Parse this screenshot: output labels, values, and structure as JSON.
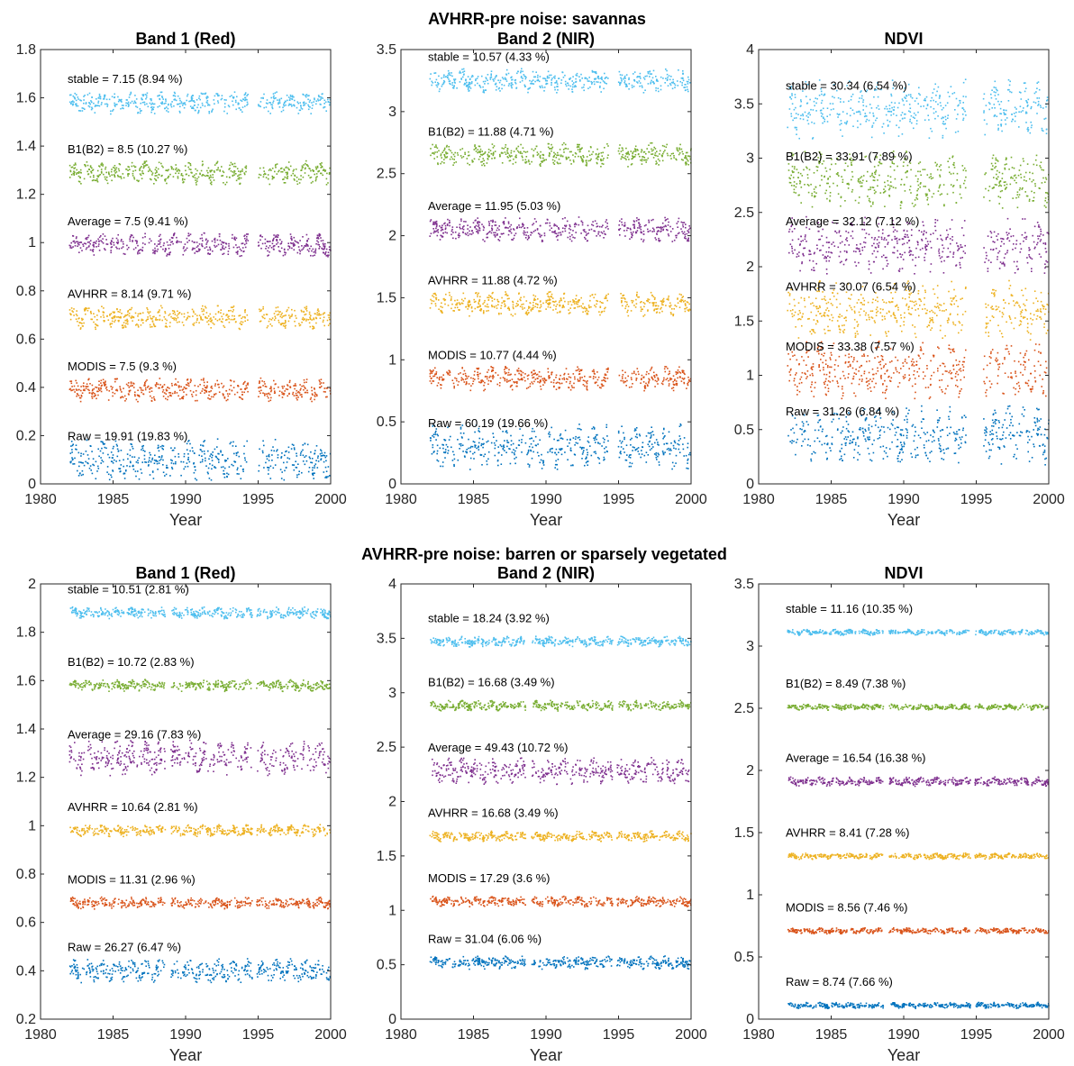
{
  "figure": {
    "sections": [
      {
        "title": "AVHRR-pre noise: savannas"
      },
      {
        "title": "AVHRR-pre noise: barren or sparsely vegetated"
      }
    ],
    "series_order": [
      "stable",
      "B1(B2)",
      "Average",
      "AVHRR",
      "MODIS",
      "Raw"
    ],
    "colors": {
      "stable": "#4DBEEE",
      "B1(B2)": "#77AC30",
      "Average": "#7E2F8E",
      "AVHRR": "#EDB120",
      "MODIS": "#D95319",
      "Raw": "#0072BD"
    }
  },
  "chart_data": [
    {
      "type": "scatter",
      "section": 0,
      "title": "Band 1 (Red)",
      "xlabel": "Year",
      "ylabel": "",
      "xlim": [
        1980,
        2000
      ],
      "xticks": [
        1980,
        1985,
        1990,
        1995,
        2000
      ],
      "ylim": [
        0,
        1.8
      ],
      "yticks": [
        0,
        0.2,
        0.4,
        0.6,
        0.8,
        1,
        1.2,
        1.4,
        1.6,
        1.8
      ],
      "x_range": [
        1982,
        2000
      ],
      "gaps": [
        [
          1994.3,
          1995.0
        ]
      ],
      "series": [
        {
          "name": "stable",
          "label": "stable = 7.15 (8.94 %)",
          "baseline": 1.58,
          "spread": 0.04
        },
        {
          "name": "B1(B2)",
          "label": "B1(B2) = 8.5 (10.27 %)",
          "baseline": 1.29,
          "spread": 0.04
        },
        {
          "name": "Average",
          "label": "Average = 7.5 (9.41 %)",
          "baseline": 0.99,
          "spread": 0.04
        },
        {
          "name": "AVHRR",
          "label": "AVHRR = 8.14 (9.71 %)",
          "baseline": 0.69,
          "spread": 0.04
        },
        {
          "name": "MODIS",
          "label": "MODIS = 7.5 (9.3 %)",
          "baseline": 0.39,
          "spread": 0.04
        },
        {
          "name": "Raw",
          "label": "Raw = 19.91 (19.83 %)",
          "baseline": 0.1,
          "spread": 0.07
        }
      ]
    },
    {
      "type": "scatter",
      "section": 0,
      "title": "Band 2 (NIR)",
      "xlabel": "Year",
      "ylabel": "",
      "xlim": [
        1980,
        2000
      ],
      "xticks": [
        1980,
        1985,
        1990,
        1995,
        2000
      ],
      "ylim": [
        0,
        3.5
      ],
      "yticks": [
        0,
        0.5,
        1,
        1.5,
        2,
        2.5,
        3,
        3.5
      ],
      "x_range": [
        1982,
        2000
      ],
      "gaps": [
        [
          1994.3,
          1995.0
        ]
      ],
      "series": [
        {
          "name": "stable",
          "label": "stable = 10.57 (4.33 %)",
          "baseline": 3.25,
          "spread": 0.08
        },
        {
          "name": "B1(B2)",
          "label": "B1(B2) = 11.88 (4.71 %)",
          "baseline": 2.65,
          "spread": 0.08
        },
        {
          "name": "Average",
          "label": "Average = 11.95 (5.03 %)",
          "baseline": 2.05,
          "spread": 0.08
        },
        {
          "name": "AVHRR",
          "label": "AVHRR = 11.88 (4.72 %)",
          "baseline": 1.45,
          "spread": 0.08
        },
        {
          "name": "MODIS",
          "label": "MODIS = 10.77 (4.44 %)",
          "baseline": 0.85,
          "spread": 0.08
        },
        {
          "name": "Raw",
          "label": "Raw = 60.19 (19.66 %)",
          "baseline": 0.3,
          "spread": 0.15
        }
      ]
    },
    {
      "type": "scatter",
      "section": 0,
      "title": "NDVI",
      "xlabel": "Year",
      "ylabel": "",
      "xlim": [
        1980,
        2000
      ],
      "xticks": [
        1980,
        1985,
        1990,
        1995,
        2000
      ],
      "ylim": [
        0,
        4
      ],
      "yticks": [
        0,
        0.5,
        1,
        1.5,
        2,
        2.5,
        3,
        3.5,
        4
      ],
      "x_range": [
        1982,
        2000
      ],
      "gaps": [
        [
          1994.3,
          1995.5
        ]
      ],
      "series": [
        {
          "name": "stable",
          "label": "stable = 30.34 (6.54 %)",
          "baseline": 3.45,
          "spread": 0.22
        },
        {
          "name": "B1(B2)",
          "label": "B1(B2) = 33.91 (7.89 %)",
          "baseline": 2.8,
          "spread": 0.22
        },
        {
          "name": "Average",
          "label": "Average = 32.12 (7.12 %)",
          "baseline": 2.2,
          "spread": 0.22
        },
        {
          "name": "AVHRR",
          "label": "AVHRR = 30.07 (6.54 %)",
          "baseline": 1.6,
          "spread": 0.22
        },
        {
          "name": "MODIS",
          "label": "MODIS = 33.38 (7.57 %)",
          "baseline": 1.05,
          "spread": 0.22
        },
        {
          "name": "Raw",
          "label": "Raw = 31.26 (6.84 %)",
          "baseline": 0.45,
          "spread": 0.22
        }
      ]
    },
    {
      "type": "scatter",
      "section": 1,
      "title": "Band 1 (Red)",
      "xlabel": "Year",
      "ylabel": "",
      "xlim": [
        1980,
        2000
      ],
      "xticks": [
        1980,
        1985,
        1990,
        1995,
        2000
      ],
      "ylim": [
        0.2,
        2
      ],
      "yticks": [
        0.2,
        0.4,
        0.6,
        0.8,
        1,
        1.2,
        1.4,
        1.6,
        1.8,
        2
      ],
      "x_range": [
        1982,
        2000
      ],
      "gaps": [
        [
          1988.6,
          1989.0
        ],
        [
          1994.6,
          1994.9
        ]
      ],
      "series": [
        {
          "name": "stable",
          "label": "stable = 10.51 (2.81 %)",
          "baseline": 1.88,
          "spread": 0.02
        },
        {
          "name": "B1(B2)",
          "label": "B1(B2) = 10.72 (2.83 %)",
          "baseline": 1.58,
          "spread": 0.02
        },
        {
          "name": "Average",
          "label": "Average = 29.16 (7.83 %)",
          "baseline": 1.28,
          "spread": 0.06
        },
        {
          "name": "AVHRR",
          "label": "AVHRR = 10.64 (2.81 %)",
          "baseline": 0.98,
          "spread": 0.02
        },
        {
          "name": "MODIS",
          "label": "MODIS = 11.31 (2.96 %)",
          "baseline": 0.68,
          "spread": 0.02
        },
        {
          "name": "Raw",
          "label": "Raw = 26.27 (6.47 %)",
          "baseline": 0.4,
          "spread": 0.04
        }
      ]
    },
    {
      "type": "scatter",
      "section": 1,
      "title": "Band 2 (NIR)",
      "xlabel": "Year",
      "ylabel": "",
      "xlim": [
        1980,
        2000
      ],
      "xticks": [
        1980,
        1985,
        1990,
        1995,
        2000
      ],
      "ylim": [
        0,
        4
      ],
      "yticks": [
        0,
        0.5,
        1,
        1.5,
        2,
        2.5,
        3,
        3.5,
        4
      ],
      "x_range": [
        1982,
        2000
      ],
      "gaps": [
        [
          1988.6,
          1989.0
        ],
        [
          1994.6,
          1994.9
        ]
      ],
      "series": [
        {
          "name": "stable",
          "label": "stable = 18.24 (3.92 %)",
          "baseline": 3.47,
          "spread": 0.04
        },
        {
          "name": "B1(B2)",
          "label": "B1(B2) = 16.68 (3.49 %)",
          "baseline": 2.88,
          "spread": 0.04
        },
        {
          "name": "Average",
          "label": "Average = 49.43 (10.72 %)",
          "baseline": 2.28,
          "spread": 0.1
        },
        {
          "name": "AVHRR",
          "label": "AVHRR = 16.68 (3.49 %)",
          "baseline": 1.68,
          "spread": 0.04
        },
        {
          "name": "MODIS",
          "label": "MODIS = 17.29 (3.6 %)",
          "baseline": 1.08,
          "spread": 0.04
        },
        {
          "name": "Raw",
          "label": "Raw = 31.04 (6.06 %)",
          "baseline": 0.52,
          "spread": 0.05
        }
      ]
    },
    {
      "type": "scatter",
      "section": 1,
      "title": "NDVI",
      "xlabel": "Year",
      "ylabel": "",
      "xlim": [
        1980,
        2000
      ],
      "xticks": [
        1980,
        1985,
        1990,
        1995,
        2000
      ],
      "ylim": [
        0,
        3.5
      ],
      "yticks": [
        0,
        0.5,
        1,
        1.5,
        2,
        2.5,
        3,
        3.5
      ],
      "x_range": [
        1982,
        2000
      ],
      "gaps": [
        [
          1988.6,
          1989.0
        ],
        [
          1994.6,
          1994.9
        ]
      ],
      "series": [
        {
          "name": "stable",
          "label": "stable = 11.16 (10.35 %)",
          "baseline": 3.11,
          "spread": 0.02
        },
        {
          "name": "B1(B2)",
          "label": "B1(B2) = 8.49 (7.38 %)",
          "baseline": 2.51,
          "spread": 0.02
        },
        {
          "name": "Average",
          "label": "Average = 16.54 (16.38 %)",
          "baseline": 1.91,
          "spread": 0.03
        },
        {
          "name": "AVHRR",
          "label": "AVHRR = 8.41 (7.28 %)",
          "baseline": 1.31,
          "spread": 0.02
        },
        {
          "name": "MODIS",
          "label": "MODIS = 8.56 (7.46 %)",
          "baseline": 0.71,
          "spread": 0.02
        },
        {
          "name": "Raw",
          "label": "Raw = 8.74 (7.66 %)",
          "baseline": 0.11,
          "spread": 0.02
        }
      ]
    }
  ]
}
